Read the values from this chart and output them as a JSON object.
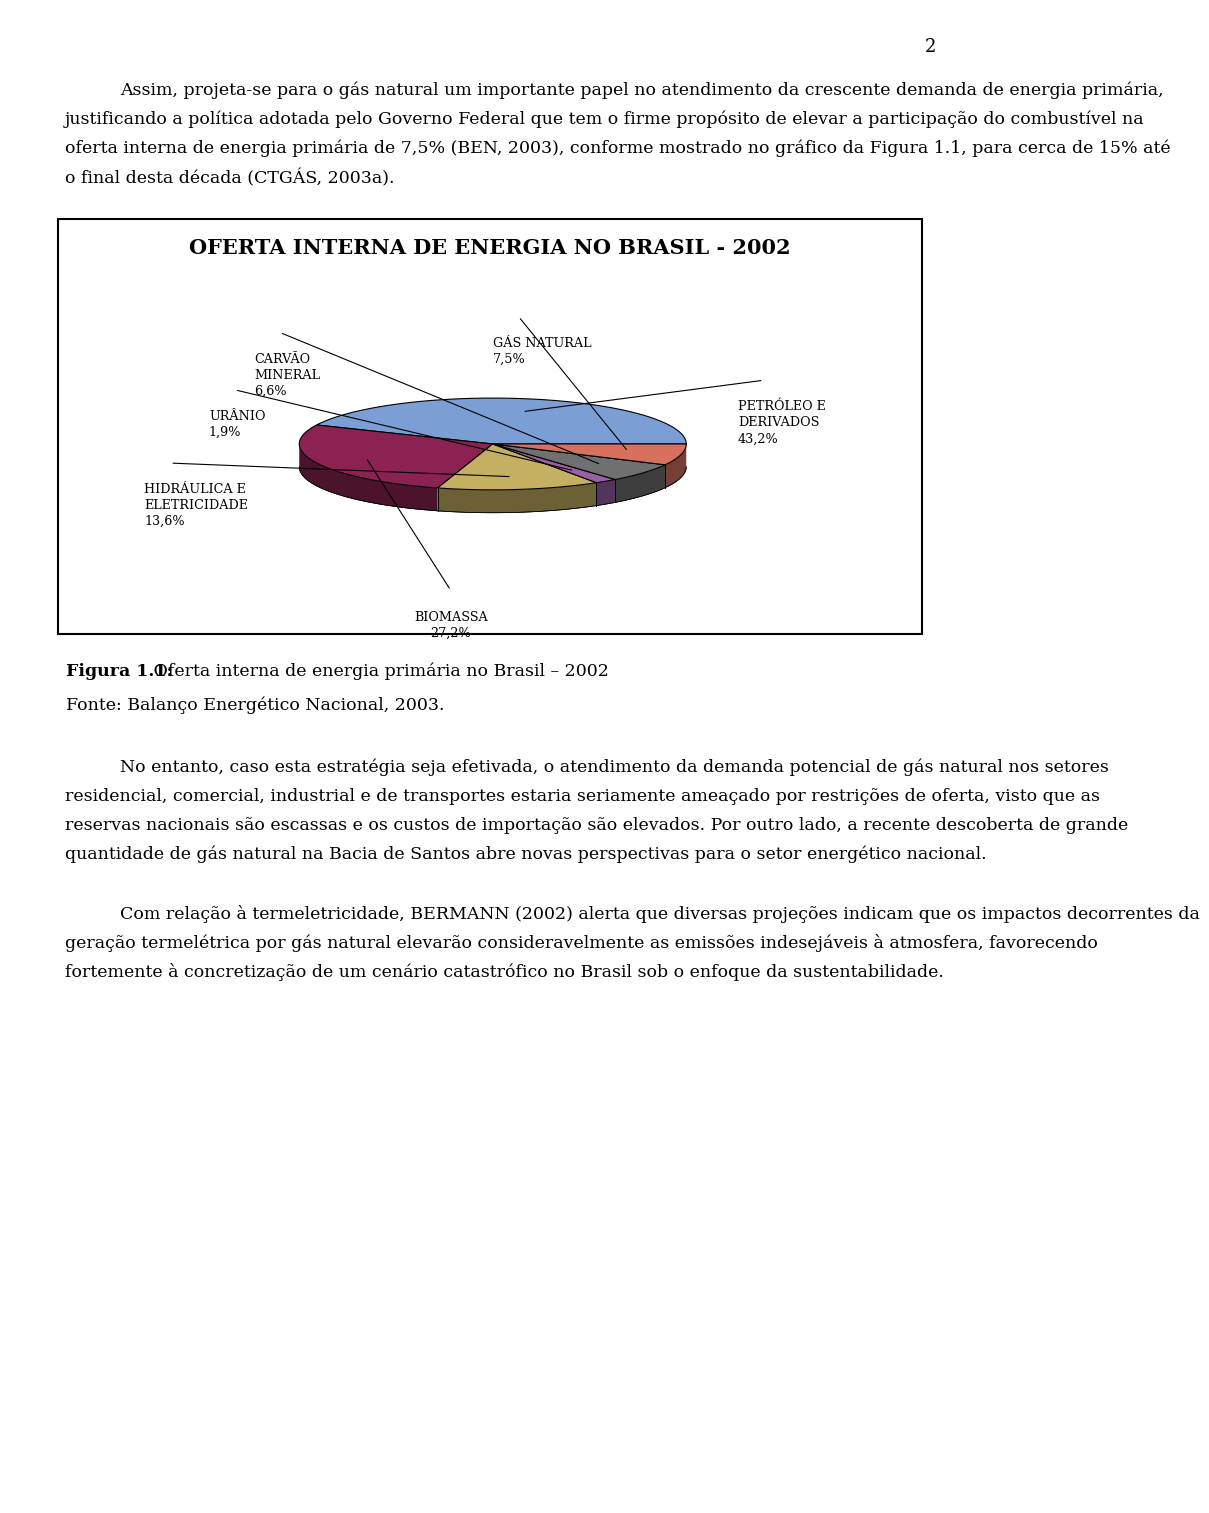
{
  "page_number": "2",
  "page_bg": "#ffffff",
  "para1": "Assim, projeta-se para o gás natural um importante papel no atendimento da crescente demanda de energia primária, justificando a política adotada pelo Governo Federal que tem o firme propósito de elevar a participação do combustível na oferta interna de energia primária de 7,5% (BEN, 2003), conforme mostrado no gráfico da Figura 1.1, para cerca de 15% até o final desta década (CTGÁS, 2003a).",
  "chart_title": "OFERTA INTERNA DE ENERGIA NO BRASIL - 2002",
  "pie_values": [
    43.2,
    27.2,
    13.6,
    1.9,
    6.6,
    7.5
  ],
  "pie_colors": [
    "#7b9fd4",
    "#8b2252",
    "#c4b060",
    "#9b5fa5",
    "#707070",
    "#d87060"
  ],
  "pie_labels": [
    "PETRÓLEO E\nDERIVADOS",
    "BIOMASSA",
    "HIDRÁULICA E\nELETRICIDADE",
    "URÂNIO",
    "CARVÃO\nMINERAL",
    "GÁS NATURAL"
  ],
  "pie_pcts": [
    "43,2%",
    "27,2%",
    "13,6%",
    "1,9%",
    "6,6%",
    "7,5%"
  ],
  "figura_bold": "Figura 1.1:",
  "figura_normal": " Oferta interna de energia primária no Brasil – 2002",
  "fonte_text": "Fonte: Balanço Energético Nacional, 2003.",
  "para2": "No entanto, caso esta estratégia seja efetivada, o atendimento da demanda potencial de gás natural nos setores residencial, comercial, industrial e de transportes estaria seriamente ameaçado por restrições de oferta, visto que as reservas nacionais são escassas e os custos de importação são elevados. Por outro lado, a recente descoberta de grande quantidade de gás natural na Bacia de Santos abre novas perspectivas para o setor energético nacional.",
  "para3": "Com relação à termeletricidade, BERMANN (2002) alerta que diversas projeções indicam que os impactos decorrentes da geração termelétrica por gás natural elevarão consideravelmente as emissões indesejáveis à atmosfera, favorecendo fortemente à concretização de um cenário catastrófico no Brasil sob o enfoque da sustentabilidade."
}
